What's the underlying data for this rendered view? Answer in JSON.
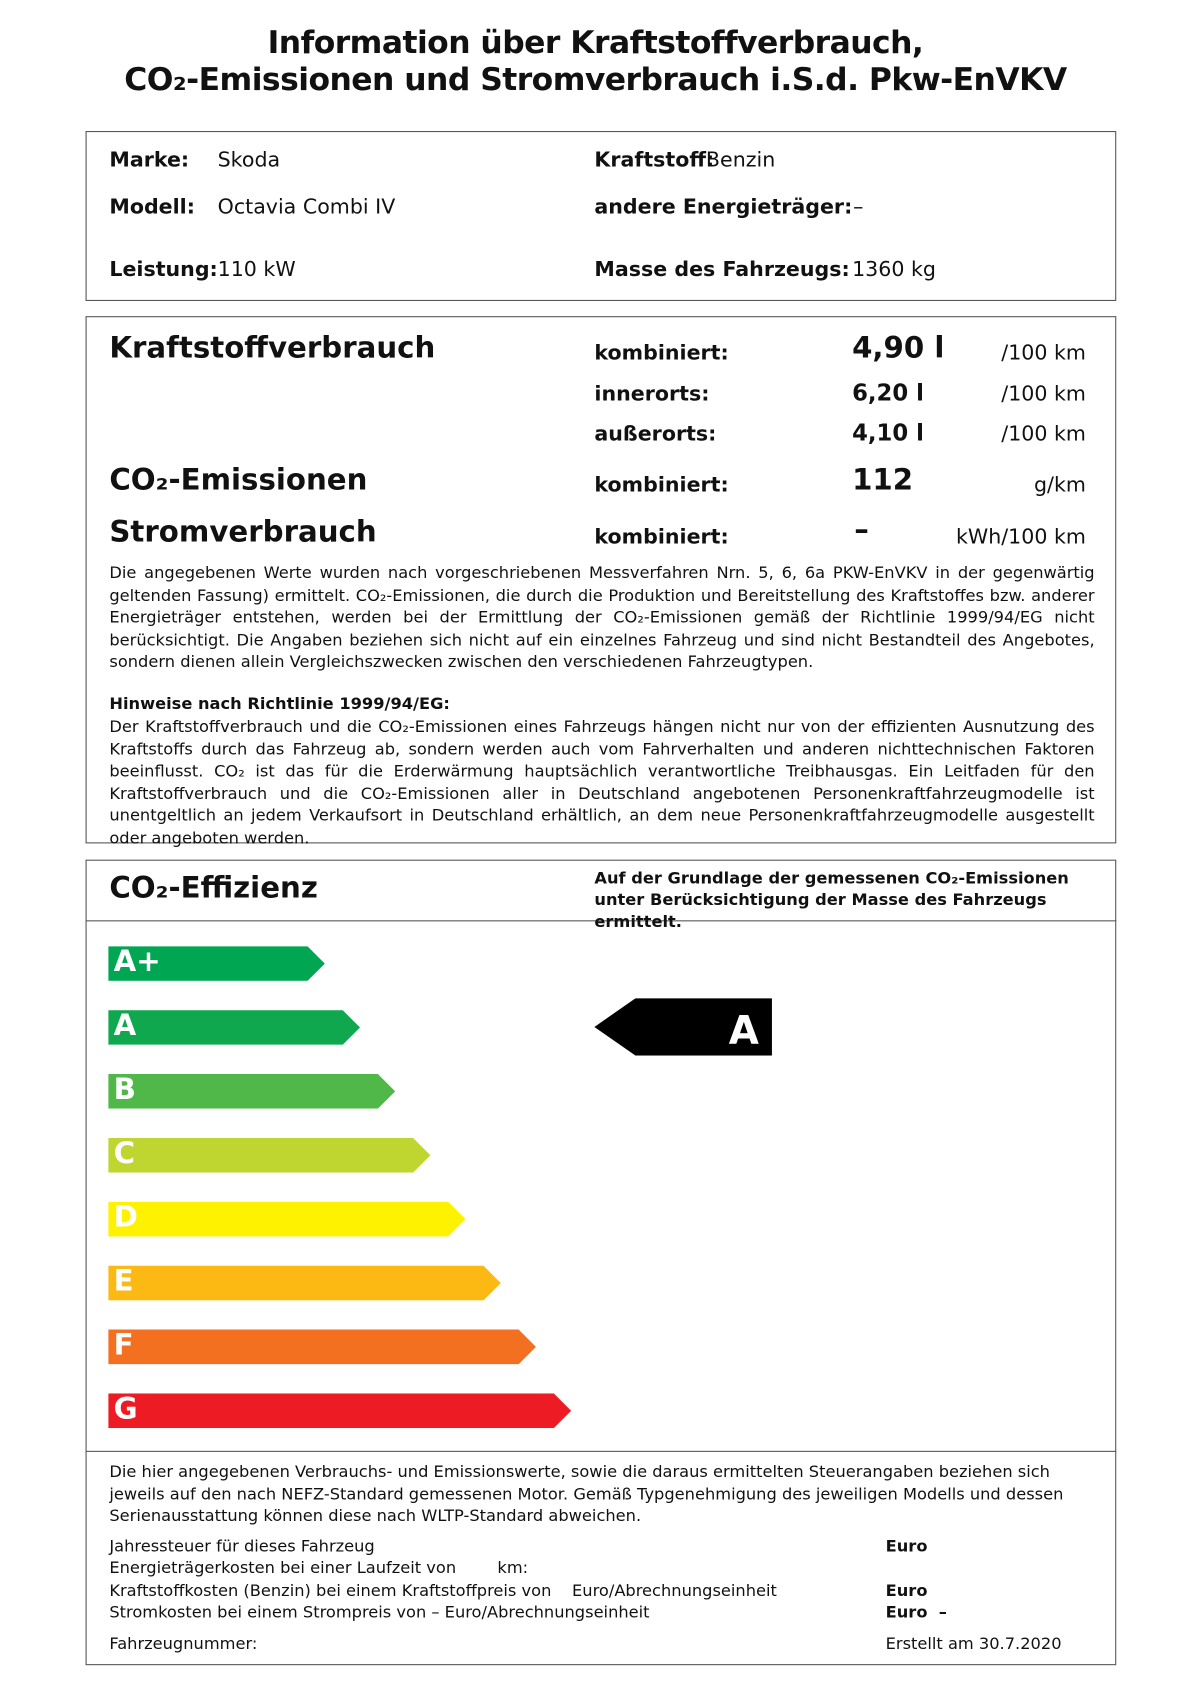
{
  "title": {
    "line1": "Information über Kraftstoffverbrauch,",
    "line2": "CO₂-Emissionen und Stromverbrauch i.S.d. Pkw-EnVKV"
  },
  "vehicle": {
    "marke_label": "Marke:",
    "marke": "Skoda",
    "modell_label": "Modell:",
    "modell": "Octavia Combi IV",
    "leistung_label": "Leistung:",
    "leistung": "110 kW",
    "kraftstoff_label": "Kraftstoff:",
    "kraftstoff": "Benzin",
    "energie_label": "andere Energieträger:",
    "energie": "–",
    "masse_label": "Masse des Fahrzeugs:",
    "masse": "1360 kg"
  },
  "consumption": {
    "fuel_heading": "Kraftstoffverbrauch",
    "rows": [
      {
        "label": "kombiniert:",
        "value": "4,90 l",
        "unit": "/100 km"
      },
      {
        "label": "innerorts:",
        "value": "6,20 l",
        "unit": "/100 km"
      },
      {
        "label": "außerorts:",
        "value": "4,10 l",
        "unit": "/100 km"
      }
    ],
    "co2_heading": "CO₂-Emissionen",
    "co2_label": "kombiniert:",
    "co2_value": "112",
    "co2_unit": "g/km",
    "power_heading": "Stromverbrauch",
    "power_label": "kombiniert:",
    "power_value": "–",
    "power_unit": "kWh/100 km",
    "note": "Die angegebenen Werte wurden nach vorgeschriebenen Messverfahren Nrn. 5, 6, 6a PKW-EnVKV in der gegenwärtig geltenden Fassung) ermittelt. CO₂-Emissionen, die durch die Produktion und Bereitstellung des Kraftstoffes bzw. anderer Energieträger entstehen, werden bei der Ermittlung der CO₂-Emissionen gemäß der Richtlinie 1999/94/EG nicht berücksichtigt. Die Angaben beziehen sich nicht auf ein einzelnes Fahrzeug und sind nicht Bestandteil des Angebotes, sondern dienen allein Vergleichszwecken zwischen den verschiedenen Fahrzeugtypen.",
    "hint_heading": "Hinweise nach Richtlinie 1999/94/EG:",
    "hint": "Der Kraftstoffverbrauch und die CO₂-Emissionen eines Fahrzeugs hängen nicht nur von der effizienten Ausnutzung des Kraftstoffs durch das Fahrzeug ab, sondern werden auch vom Fahrverhalten und anderen nichttechnischen Faktoren beeinflusst. CO₂ ist das für die Erderwärmung hauptsächlich verantwortliche Treibhausgas. Ein Leitfaden für den Kraftstoffverbrauch und die CO₂-Emissionen aller in Deutschland angebotenen Personenkraftfahrzeugmodelle ist unentgeltlich an jedem Verkaufsort in Deutschland erhältlich, an dem neue Personenkraftfahrzeugmodelle ausgestellt oder angeboten werden."
  },
  "efficiency": {
    "heading": "CO₂-Effizienz",
    "description": "Auf der Grundlage der gemessenen CO₂-Emissionen unter Berücksichtigung der Masse des Fahrzeugs ermittelt.",
    "classes": [
      {
        "label": "A+",
        "color": "#00a651"
      },
      {
        "label": "A",
        "color": "#0fa84f"
      },
      {
        "label": "B",
        "color": "#50b848"
      },
      {
        "label": "C",
        "color": "#bed62f"
      },
      {
        "label": "D",
        "color": "#fff200"
      },
      {
        "label": "E",
        "color": "#fdb913"
      },
      {
        "label": "F",
        "color": "#f37021"
      },
      {
        "label": "G",
        "color": "#ed1c24"
      }
    ],
    "rating": "A"
  },
  "footer": {
    "text": "Die hier angegebenen Verbrauchs- und Emissionswerte, sowie die daraus ermittelten Steuerangaben beziehen sich jeweils auf den nach NEFZ-Standard gemessenen Motor. Gemäß Typgenehmigung des jeweiligen Modells und dessen Serienausstattung können diese nach WLTP-Standard abweichen.",
    "tax": "Jahressteuer für dieses Fahrzeug",
    "tax_value": "Euro",
    "energy_cost": "Energieträgerkosten bei einer Laufzeit von        km:",
    "fuel_cost": "Kraftstoffkosten (Benzin) bei einem Kraftstoffpreis von    Euro/Abrechnungseinheit",
    "fuel_cost_value": "Euro",
    "power_cost": "Stromkosten bei einem Strompreis von – Euro/Abrechnungseinheit",
    "power_cost_value": "Euro  –",
    "vehicle_number": "Fahrzeugnummer:",
    "created": "Erstellt am 30.7.2020"
  }
}
